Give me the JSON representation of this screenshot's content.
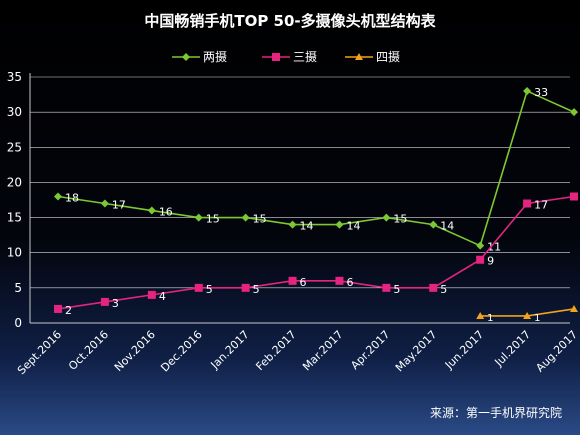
{
  "chart_data": {
    "type": "line",
    "title": "中国畅销手机TOP 50-多摄像头机型结构表",
    "categories": [
      "Sept.2016",
      "Oct.2016",
      "Nov.2016",
      "Dec.2016",
      "Jan.2017",
      "Feb.2017",
      "Mar.2017",
      "Apr.2017",
      "May.2017",
      "Jun.2017",
      "Jul.2017",
      "Aug.2017"
    ],
    "ylim": [
      0,
      35
    ],
    "yticks": [
      0,
      5,
      10,
      15,
      20,
      25,
      30,
      35
    ],
    "grid": true,
    "legend_position": "top",
    "series": [
      {
        "name": "两摄",
        "color": "#7cc832",
        "marker": "diamond",
        "values": [
          18,
          17,
          16,
          15,
          15,
          14,
          14,
          15,
          14,
          11,
          33,
          30
        ]
      },
      {
        "name": "三摄",
        "color": "#e5247f",
        "marker": "square",
        "values": [
          2,
          3,
          4,
          5,
          5,
          6,
          6,
          5,
          5,
          9,
          17,
          18
        ]
      },
      {
        "name": "四摄",
        "color": "#f2a21b",
        "marker": "triangle",
        "values": [
          null,
          null,
          null,
          null,
          null,
          null,
          null,
          null,
          null,
          1,
          1,
          2
        ]
      }
    ]
  },
  "source_note": "来源：第一手机界研究院"
}
